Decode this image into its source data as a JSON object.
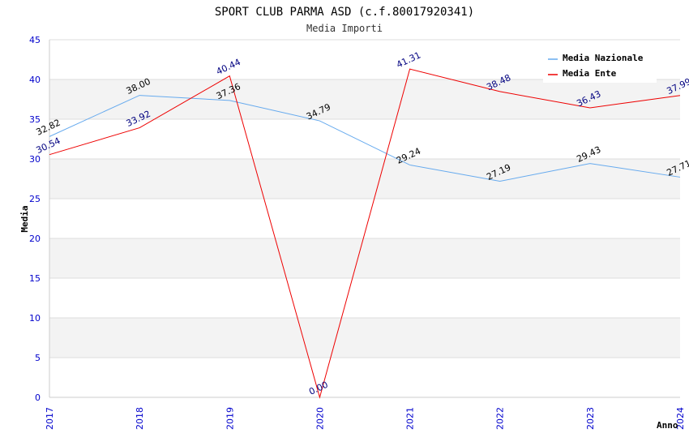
{
  "chart_data": {
    "type": "line",
    "title": "SPORT CLUB PARMA ASD (c.f.80017920341)",
    "subtitle": "Media Importi",
    "xlabel": "Anno",
    "ylabel": "Media",
    "categories": [
      "2017",
      "2018",
      "2019",
      "2020",
      "2021",
      "2022",
      "2023",
      "2024"
    ],
    "ylim": [
      0,
      45
    ],
    "yticks": [
      0,
      5,
      10,
      15,
      20,
      25,
      30,
      35,
      40,
      45
    ],
    "ytick_labels": [
      "0",
      "5",
      "10",
      "15",
      "20",
      "25",
      "30",
      "35",
      "40",
      "45"
    ],
    "grid": true,
    "legend_position": "top-right",
    "series": [
      {
        "name": "Media Nazionale",
        "color": "#66aaee",
        "label_color": "#000000",
        "values": [
          32.82,
          38.0,
          37.36,
          34.79,
          29.24,
          27.19,
          29.43,
          27.71
        ],
        "labels": [
          "32.82",
          "38.00",
          "37.36",
          "34.79",
          "29.24",
          "27.19",
          "29.43",
          "27.71"
        ]
      },
      {
        "name": "Media Ente",
        "color": "#ee0000",
        "label_color": "#000080",
        "values": [
          30.54,
          33.92,
          40.44,
          0.0,
          41.31,
          38.48,
          36.43,
          37.99
        ],
        "labels": [
          "30.54",
          "33.92",
          "40.44",
          "0.00",
          "41.31",
          "38.48",
          "36.43",
          "37.99"
        ]
      }
    ]
  }
}
